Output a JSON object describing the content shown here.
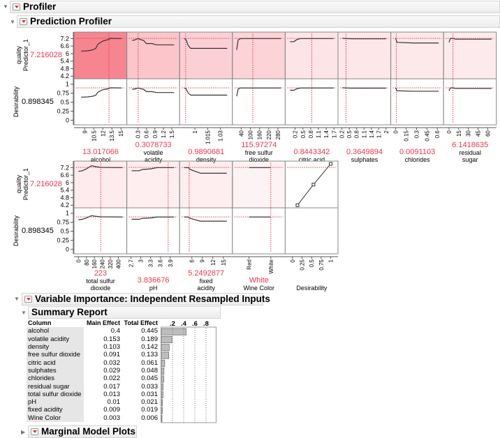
{
  "headers": {
    "profiler": "Profiler",
    "prediction_profiler": "Prediction Profiler",
    "variable_importance": "Variable Importance: Independent Resampled Inputs",
    "summary_report": "Summary Report",
    "marginal_model_plots": "Marginal Model Plots"
  },
  "profiler": {
    "response_label": [
      "quality",
      "Predictor_1"
    ],
    "response_value": "7.216028",
    "desirability_label": "Desirability",
    "desirability_value": "0.898345",
    "quality_ticks": [
      "4.2",
      "4.8",
      "5.4",
      "6",
      "6.6",
      "7.2"
    ],
    "desirability_ticks": [
      "0",
      "0.25",
      "0.5",
      "0.75",
      "1"
    ],
    "colors": {
      "curve": "#333333",
      "crosshair": "#f0384a"
    }
  },
  "chart_data": {
    "type": "line",
    "quality_range": [
      3.99,
      7.72
    ],
    "desirability_range": [
      -0.13,
      1.15
    ],
    "desirability_fn": {
      "q0": 4.2,
      "d0": 0.13,
      "slope": 0.255
    },
    "factors": [
      {
        "name": [
          "alcohol"
        ],
        "value": "13.017066",
        "cur": 13.017,
        "range": [
          7.8,
          15.4
        ],
        "ticks": [
          "9",
          "10.5",
          "12",
          "13.5",
          "15"
        ],
        "importance": 1.0,
        "curve": [
          [
            8.4,
            6.2
          ],
          [
            9.5,
            6.22
          ],
          [
            10.3,
            6.3
          ],
          [
            10.8,
            6.4
          ],
          [
            11.2,
            6.75
          ],
          [
            11.8,
            6.95
          ],
          [
            12.3,
            7.05
          ],
          [
            12.8,
            7.1
          ],
          [
            13.2,
            7.22
          ],
          [
            15.1,
            7.2
          ]
        ]
      },
      {
        "name": [
          "volatile",
          "acidity"
        ],
        "value": "0.3078733",
        "cur": 0.308,
        "range": [
          0.03,
          1.65
        ],
        "ticks": [
          "0.3",
          "0.6",
          "0.9",
          "1.2",
          "1.5"
        ],
        "importance": 0.42,
        "curve": [
          [
            0.1,
            7.05
          ],
          [
            0.2,
            7.1
          ],
          [
            0.3,
            7.2
          ],
          [
            0.4,
            7.12
          ],
          [
            0.5,
            7.05
          ],
          [
            0.6,
            6.8
          ],
          [
            0.8,
            6.8
          ],
          [
            0.95,
            6.7
          ],
          [
            1.58,
            6.7
          ]
        ]
      },
      {
        "name": [
          "density"
        ],
        "value": "0.9890681",
        "cur": 0.989,
        "range": [
          0.986,
          1.04
        ],
        "ticks": [
          "1",
          "1.015",
          "1.03"
        ],
        "tickvals": [
          1,
          1.015,
          1.03
        ],
        "importance": 0.32,
        "curve": [
          [
            0.9875,
            7.2
          ],
          [
            0.9895,
            7.1
          ],
          [
            0.992,
            6.65
          ],
          [
            0.995,
            6.42
          ],
          [
            1.038,
            6.42
          ]
        ]
      },
      {
        "name": [
          "free sulfur",
          "dioxide"
        ],
        "value": "115.97274",
        "cur": 116,
        "range": [
          5,
          305
        ],
        "ticks": [
          "40",
          "100",
          "160",
          "220",
          "280"
        ],
        "importance": 0.3,
        "curve": [
          [
            10,
            6.3
          ],
          [
            20,
            7.1
          ],
          [
            35,
            7.2
          ],
          [
            300,
            7.2
          ]
        ]
      },
      {
        "name": [
          "citric acid"
        ],
        "value": "0.8443342",
        "cur": 0.844,
        "range": [
          -0.05,
          1.72
        ],
        "ticks": [
          "0.2",
          "0.5",
          "0.8",
          "1.1",
          "1.4",
          "1.7"
        ],
        "importance": 0.14,
        "curve": [
          [
            0,
            6.95
          ],
          [
            0.15,
            6.95
          ],
          [
            0.25,
            7.1
          ],
          [
            0.4,
            7.2
          ],
          [
            1.68,
            7.2
          ]
        ]
      },
      {
        "name": [
          "sulphates"
        ],
        "value": "0.3649894",
        "cur": 0.365,
        "range": [
          0.18,
          2.05
        ],
        "ticks": [
          "0.2",
          "0.5",
          "0.8",
          "1.1",
          "1.4",
          "1.7",
          "2"
        ],
        "importance": 0.11,
        "curve": [
          [
            0.22,
            7.22
          ],
          [
            0.6,
            7.18
          ],
          [
            2,
            7.18
          ]
        ]
      },
      {
        "name": [
          "chlorides"
        ],
        "value": "0.0091103",
        "cur": 0.0091,
        "range": [
          -0.02,
          0.64
        ],
        "ticks": [
          "0",
          "0.15",
          "0.3",
          "0.45",
          "0.6"
        ],
        "importance": 0.1,
        "curve": [
          [
            0,
            7.2
          ],
          [
            0.02,
            6.9
          ],
          [
            0.25,
            6.85
          ],
          [
            0.62,
            6.85
          ]
        ]
      },
      {
        "name": [
          "residual",
          "sugar"
        ],
        "value": "6.1418635",
        "cur": 6.14,
        "range": [
          -3,
          68
        ],
        "ticks": [
          "0",
          "15",
          "30",
          "45",
          "60"
        ],
        "importance": 0.08,
        "curve": [
          [
            0,
            6.9
          ],
          [
            2,
            7.2
          ],
          [
            6,
            7.22
          ],
          [
            10,
            7.15
          ],
          [
            66,
            7.15
          ]
        ]
      },
      {
        "name": [
          "total sulfur",
          "dioxide"
        ],
        "value": "223",
        "cur": 223,
        "range": [
          -10,
          450
        ],
        "ticks": [
          "0",
          "80",
          "160",
          "240",
          "320",
          "400"
        ],
        "importance": 0.07,
        "curve": [
          [
            0,
            6.9
          ],
          [
            40,
            6.95
          ],
          [
            80,
            7.1
          ],
          [
            130,
            7.35
          ],
          [
            160,
            7.3
          ],
          [
            220,
            7.22
          ],
          [
            440,
            7.2
          ]
        ]
      },
      {
        "name": [
          "pH"
        ],
        "value": "3.836676",
        "cur": 3.837,
        "range": [
          2.68,
          4.08
        ],
        "ticks": [
          "2.7",
          "3",
          "3.3",
          "3.6",
          "3.9"
        ],
        "importance": 0.05,
        "curve": [
          [
            2.72,
            6.95
          ],
          [
            2.95,
            6.95
          ],
          [
            3.05,
            7.05
          ],
          [
            3.3,
            7.1
          ],
          [
            3.5,
            7.2
          ],
          [
            4.02,
            7.2
          ]
        ]
      },
      {
        "name": [
          "fixed",
          "acidity"
        ],
        "value": "5.2492877",
        "cur": 5.249,
        "range": [
          3.5,
          16.6
        ],
        "ticks": [
          "6",
          "9",
          "12",
          "15"
        ],
        "importance": 0.05,
        "curve": [
          [
            3.8,
            7.2
          ],
          [
            5,
            7.2
          ],
          [
            5.5,
            7.05
          ],
          [
            7,
            6.9
          ],
          [
            8.5,
            6.75
          ],
          [
            16,
            6.75
          ]
        ]
      },
      {
        "name": [
          "Wine Color"
        ],
        "value": "White",
        "cur": 1,
        "range": [
          -0.6,
          1.5
        ],
        "ticks": [
          "Red",
          "White"
        ],
        "tickvals": [
          0,
          1
        ],
        "importance": 0.0,
        "curve": [
          [
            0,
            7.2
          ],
          [
            1,
            7.2
          ]
        ]
      }
    ],
    "desirability_panel": {
      "label": "Desirability",
      "ticks": [
        "0",
        "0.25",
        "0.5",
        "0.75",
        "1"
      ],
      "range": [
        -0.1,
        1.1
      ],
      "points": [
        [
          0.13,
          4.2
        ],
        [
          0.55,
          5.85
        ],
        [
          1.0,
          7.5
        ]
      ]
    },
    "importance": {
      "columns": [
        "Column",
        "Main Effect",
        "Total Effect"
      ],
      "axis_ticks": [
        ".2",
        ".4",
        ".6",
        ".8"
      ],
      "rows": [
        {
          "column": "alcohol",
          "main": "0.4",
          "total": "0.445",
          "t": 0.445
        },
        {
          "column": "volatile acidity",
          "main": "0.153",
          "total": "0.189",
          "t": 0.189
        },
        {
          "column": "density",
          "main": "0.103",
          "total": "0.142",
          "t": 0.142
        },
        {
          "column": "free sulfur dioxide",
          "main": "0.091",
          "total": "0.133",
          "t": 0.133
        },
        {
          "column": "citric acid",
          "main": "0.032",
          "total": "0.061",
          "t": 0.061
        },
        {
          "column": "sulphates",
          "main": "0.029",
          "total": "0.048",
          "t": 0.048
        },
        {
          "column": "chlorides",
          "main": "0.022",
          "total": "0.045",
          "t": 0.045
        },
        {
          "column": "residual sugar",
          "main": "0.017",
          "total": "0.033",
          "t": 0.033
        },
        {
          "column": "total sulfur dioxide",
          "main": "0.013",
          "total": "0.031",
          "t": 0.031
        },
        {
          "column": "pH",
          "main": "0.01",
          "total": "0.021",
          "t": 0.021
        },
        {
          "column": "fixed acidity",
          "main": "0.009",
          "total": "0.019",
          "t": 0.019
        },
        {
          "column": "Wine Color",
          "main": "0.003",
          "total": "0.006",
          "t": 0.006
        }
      ]
    }
  }
}
